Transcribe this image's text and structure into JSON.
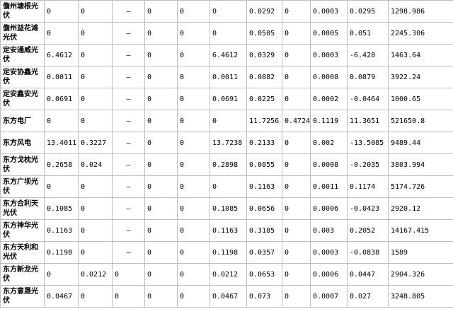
{
  "table": {
    "rows": [
      [
        "儋州塘根光伏",
        "0",
        "0",
        "—",
        "0",
        "0",
        "0",
        "0.0292",
        "0",
        "0.0003",
        "0.0295",
        "1298.986"
      ],
      [
        "儋州益花滩光伏",
        "0",
        "0",
        "—",
        "0",
        "0",
        "0",
        "0.0505",
        "0",
        "0.0005",
        "0.051",
        "2245.306"
      ],
      [
        "定安通威光伏",
        "6.4612",
        "0",
        "—",
        "0",
        "0",
        "6.4612",
        "0.0329",
        "0",
        "0.0003",
        "-6.428",
        "1463.64"
      ],
      [
        "定安协鑫光伏",
        "0.0011",
        "0",
        "—",
        "0",
        "0",
        "0.0011",
        "0.0882",
        "0",
        "0.0008",
        "0.0879",
        "3922.24"
      ],
      [
        "定安鑫安光伏",
        "0.0691",
        "0",
        "—",
        "0",
        "0",
        "0.0691",
        "0.0225",
        "0",
        "0.0002",
        "-0.0464",
        "1000.65"
      ],
      [
        "东方电厂",
        "0",
        "0",
        "—",
        "0",
        "0",
        "0",
        "11.7256",
        "0.4724",
        "0.1119",
        "11.3651",
        "521650.8"
      ],
      [
        "东方风电",
        "13.4011",
        "0.3227",
        "—",
        "0",
        "0",
        "13.7238",
        "0.2133",
        "0",
        "0.002",
        "-13.5085",
        "9489.44"
      ],
      [
        "东方戈枕光伏",
        "0.2658",
        "0.024",
        "—",
        "0",
        "0",
        "0.2898",
        "0.0855",
        "0",
        "0.0008",
        "-0.2035",
        "3803.994"
      ],
      [
        "东方广坝光伏",
        "0",
        "0",
        "—",
        "0",
        "0",
        "0",
        "0.1163",
        "0",
        "0.0011",
        "0.1174",
        "5174.726"
      ],
      [
        "东方合利天光伏",
        "0.1085",
        "0",
        "—",
        "0",
        "0",
        "0.1085",
        "0.0656",
        "0",
        "0.0006",
        "-0.0423",
        "2920.12"
      ],
      [
        "东方神华光伏",
        "0.1163",
        "0",
        "—",
        "0",
        "0",
        "0.1163",
        "0.3185",
        "0",
        "0.003",
        "0.2052",
        "14167.415"
      ],
      [
        "东方天利和光伏",
        "0.1198",
        "0",
        "—",
        "0",
        "0",
        "0.1198",
        "0.0357",
        "0",
        "0.0003",
        "-0.0838",
        "1589"
      ],
      [
        "东方新龙光伏",
        "0",
        "0.0212",
        "0",
        "0",
        "0",
        "0.0212",
        "0.0653",
        "0",
        "0.0006",
        "0.0447",
        "2904.326"
      ],
      [
        "东方意晟光伏",
        "0.0467",
        "0",
        "0",
        "0",
        "0",
        "0.0467",
        "0.073",
        "0",
        "0.0007",
        "0.027",
        "3248.805"
      ]
    ]
  }
}
